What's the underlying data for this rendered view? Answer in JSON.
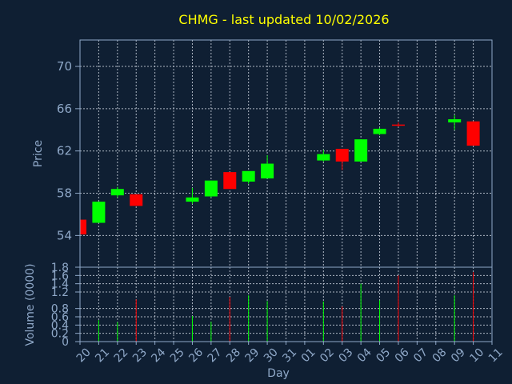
{
  "chart_data": {
    "type": "candlestick",
    "title": "CHMG - last updated 10/02/2026",
    "xlabel": "Day",
    "price_ylabel": "Price",
    "volume_ylabel": "Volume (0000)",
    "price_ylim": [
      51,
      72.5
    ],
    "price_ticks": [
      "54",
      "58",
      "62",
      "66",
      "70"
    ],
    "volume_ylim": [
      0,
      1.8
    ],
    "volume_ticks": [
      "0",
      "0.2",
      "0.4",
      "0.6",
      "0.8",
      "1.2",
      "1.4",
      "1.6",
      "1.8"
    ],
    "x_ticks": [
      "20",
      "21",
      "22",
      "23",
      "24",
      "25",
      "26",
      "27",
      "28",
      "29",
      "30",
      "31",
      "01",
      "02",
      "03",
      "04",
      "05",
      "06",
      "07",
      "08",
      "09",
      "10",
      "11"
    ],
    "up_color": "#00ff00",
    "down_color": "#ff0000",
    "candles": [
      {
        "x": 0,
        "open": 55.5,
        "high": 55.5,
        "low": 54.1,
        "close": 54.1,
        "volume": 0
      },
      {
        "x": 1,
        "open": 55.2,
        "high": 57.2,
        "low": 55.2,
        "close": 57.2,
        "volume": 0.52
      },
      {
        "x": 2,
        "open": 57.8,
        "high": 58.6,
        "low": 57.6,
        "close": 58.4,
        "volume": 0.47
      },
      {
        "x": 3,
        "open": 57.9,
        "high": 57.9,
        "low": 56.8,
        "close": 56.8,
        "volume": 1.02
      },
      {
        "x": 6,
        "open": 57.2,
        "high": 58.5,
        "low": 57.0,
        "close": 57.6,
        "volume": 0.62
      },
      {
        "x": 7,
        "open": 57.7,
        "high": 59.2,
        "low": 57.6,
        "close": 59.2,
        "volume": 0.48
      },
      {
        "x": 8,
        "open": 60.0,
        "high": 60.0,
        "low": 58.4,
        "close": 58.4,
        "volume": 1.08
      },
      {
        "x": 9,
        "open": 59.1,
        "high": 60.1,
        "low": 58.9,
        "close": 60.1,
        "volume": 1.12
      },
      {
        "x": 10,
        "open": 59.4,
        "high": 61.6,
        "low": 59.4,
        "close": 60.8,
        "volume": 0.98
      },
      {
        "x": 13,
        "open": 61.1,
        "high": 62.1,
        "low": 61.0,
        "close": 61.7,
        "volume": 0.97
      },
      {
        "x": 14,
        "open": 62.2,
        "high": 62.2,
        "low": 60.2,
        "close": 61.0,
        "volume": 0.85
      },
      {
        "x": 15,
        "open": 61.0,
        "high": 63.1,
        "low": 61.0,
        "close": 63.1,
        "volume": 1.4
      },
      {
        "x": 16,
        "open": 63.6,
        "high": 64.2,
        "low": 63.5,
        "close": 64.1,
        "volume": 1.0
      },
      {
        "x": 17,
        "open": 64.5,
        "high": 64.7,
        "low": 64.3,
        "close": 64.4,
        "volume": 1.6
      },
      {
        "x": 20,
        "open": 64.7,
        "high": 65.4,
        "low": 64.0,
        "close": 65.0,
        "volume": 1.12
      },
      {
        "x": 21,
        "open": 64.8,
        "high": 64.8,
        "low": 62.5,
        "close": 62.5,
        "volume": 1.68
      }
    ]
  }
}
